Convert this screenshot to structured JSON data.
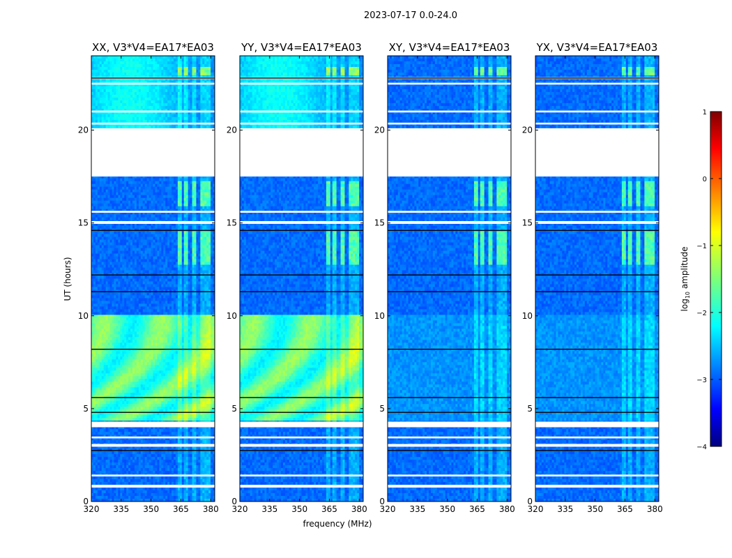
{
  "chart_data": {
    "type": "heatmap",
    "title": "2023-07-17 0.0-24.0",
    "xlabel": "frequency (MHz)",
    "ylabel": "UT (hours)",
    "xlim": [
      320,
      382
    ],
    "ylim": [
      0,
      24
    ],
    "xticks": [
      "320",
      "335",
      "350",
      "365",
      "380"
    ],
    "yticks": [
      "0",
      "5",
      "10",
      "15",
      "20"
    ],
    "panels": [
      {
        "title": "XX, V3*V4=EA17*EA03",
        "pol": "XX"
      },
      {
        "title": "YY, V3*V4=EA17*EA03",
        "pol": "YY"
      },
      {
        "title": "XY, V3*V4=EA17*EA03",
        "pol": "XY"
      },
      {
        "title": "YX, V3*V4=EA17*EA03",
        "pol": "YX"
      }
    ],
    "gap_hours": [
      [
        17.5,
        20.1
      ],
      [
        0.75,
        0.9
      ],
      [
        1.35,
        1.45
      ],
      [
        2.95,
        3.1
      ],
      [
        3.4,
        3.5
      ],
      [
        4.0,
        4.3
      ],
      [
        14.95,
        15.1
      ],
      [
        15.55,
        15.65
      ],
      [
        20.3,
        20.4
      ],
      [
        20.95,
        21.05
      ],
      [
        22.45,
        22.55
      ],
      [
        22.75,
        22.85
      ]
    ],
    "rfi_band_MHz": [
      363,
      380
    ],
    "colorbar": {
      "label": "log10 amplitude",
      "min": -4,
      "max": 1,
      "ticks": [
        "−4",
        "−3",
        "−2",
        "−1",
        "0",
        "1"
      ],
      "colormap": "jet"
    }
  }
}
